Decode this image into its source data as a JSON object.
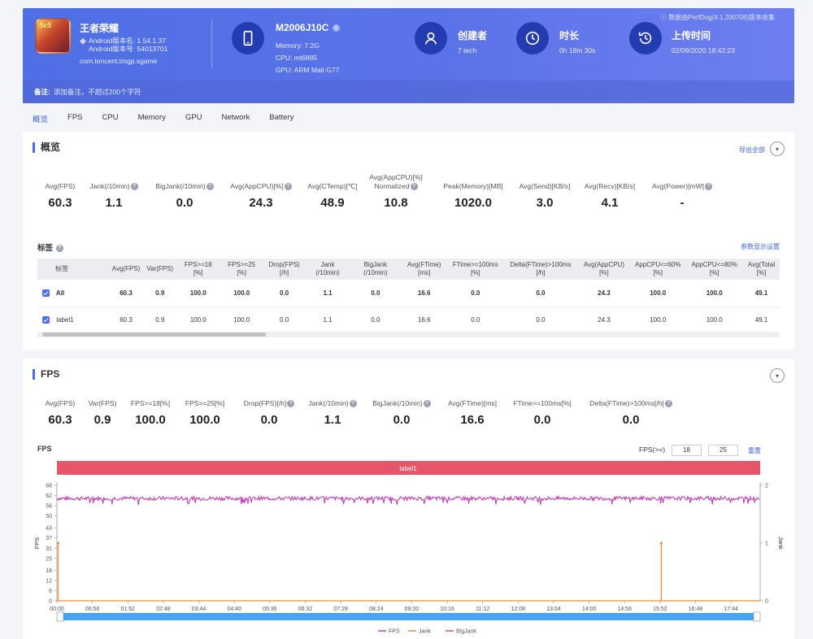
{
  "header": {
    "game_name": "王者荣耀",
    "android_version": "Android版本名: 1.54.1.37",
    "android_code": "Android版本号: 54013701",
    "package": "com.tencent.tmgp.sgame",
    "icon_text": "5v5",
    "device_model": "M2006J10C",
    "memory": "Memory: 7.2G",
    "cpu": "CPU: mt6885",
    "gpu": "GPU: ARM Mali-G77",
    "creator_label": "创建者",
    "creator_value": "7 tech",
    "duration_label": "时长",
    "duration_value": "0h 18m 30s",
    "upload_label": "上传时间",
    "upload_value": "02/09/2020 18:42:23",
    "perfdog": "ⓘ 数据由PerfDog(4.1.200708)版本收集",
    "note_label": "备注:",
    "note_placeholder": "添加备注，不超过200个字符"
  },
  "tabs": [
    "概览",
    "FPS",
    "CPU",
    "Memory",
    "GPU",
    "Network",
    "Battery"
  ],
  "overview": {
    "title": "概览",
    "export": "导出全部",
    "stats": [
      {
        "label": "Avg(FPS)",
        "value": "60.3",
        "q": false
      },
      {
        "label": "Jank(/10min)",
        "value": "1.1",
        "q": true
      },
      {
        "label": "BigJank(/10min)",
        "value": "0.0",
        "q": true
      },
      {
        "label": "Avg(AppCPU)[%]",
        "value": "24.3",
        "q": true
      },
      {
        "label": "Avg(CTemp)[℃]",
        "value": "48.9",
        "q": false
      },
      {
        "label": "Avg(AppCPU)[%] Normalized",
        "value": "10.8",
        "q": true
      },
      {
        "label": "Peak(Memory)[MB]",
        "value": "1020.0",
        "q": false
      },
      {
        "label": "Avg(Send)[KB/s]",
        "value": "3.0",
        "q": false
      },
      {
        "label": "Avg(Recv)[KB/s]",
        "value": "4.1",
        "q": false
      },
      {
        "label": "Avg(Power)[mW]",
        "value": "-",
        "q": true
      }
    ],
    "tag_title": "标签",
    "settings_link": "参数显示设置",
    "table_headers": [
      "标签",
      "Avg(FPS)",
      "Var(FPS)",
      "FPS>=18 [%]",
      "FPS>=25 [%]",
      "Drop(FPS) [/h]",
      "Jank (/10min)",
      "BigJank (/10min)",
      "Avg(FTime) [ms]",
      "FTime>=100ms [%]",
      "Delta(FTime)>100ms [/h]",
      "Avg(AppCPU) [%]",
      "AppCPU<=60% [%]",
      "AppCPU<=80% [%]",
      "Avg(Total [%]"
    ],
    "rows": [
      [
        "All",
        "60.3",
        "0.9",
        "100.0",
        "100.0",
        "0.0",
        "1.1",
        "0.0",
        "16.6",
        "0.0",
        "0.0",
        "24.3",
        "100.0",
        "100.0",
        "49.1"
      ],
      [
        "label1",
        "60.3",
        "0.9",
        "100.0",
        "100.0",
        "0.0",
        "1.1",
        "0.0",
        "16.6",
        "0.0",
        "0.0",
        "24.3",
        "100.0",
        "100.0",
        "49.1"
      ]
    ]
  },
  "fps": {
    "title": "FPS",
    "stats": [
      {
        "label": "Avg(FPS)",
        "value": "60.3",
        "q": false
      },
      {
        "label": "Var(FPS)",
        "value": "0.9",
        "q": false
      },
      {
        "label": "FPS>=18[%]",
        "value": "100.0",
        "q": false
      },
      {
        "label": "FPS>=25[%]",
        "value": "100.0",
        "q": false
      },
      {
        "label": "Drop(FPS)[/h]",
        "value": "0.0",
        "q": true
      },
      {
        "label": "Jank(/10min)",
        "value": "1.1",
        "q": true
      },
      {
        "label": "BigJank(/10min)",
        "value": "0.0",
        "q": true
      },
      {
        "label": "Avg(FTime)[ms]",
        "value": "16.6",
        "q": false
      },
      {
        "label": "FTime>=100ms[%]",
        "value": "0.0",
        "q": false
      },
      {
        "label": "Delta(FTime)>100ms[/h]",
        "value": "0.0",
        "q": true
      }
    ],
    "chart_label": "FPS",
    "threshold_label": "FPS(>=)",
    "threshold1": "18",
    "threshold2": "25",
    "reset": "重置",
    "band_label": "label1"
  },
  "chart_data": {
    "type": "line",
    "ylabel": "FPS",
    "y2label": "Jank",
    "ylim": [
      0,
      68
    ],
    "y2lim": [
      0,
      2
    ],
    "y_ticks": [
      "0",
      "6",
      "12",
      "18",
      "25",
      "31",
      "37",
      "43",
      "50",
      "56",
      "62",
      "68"
    ],
    "y2_ticks": [
      "0",
      "1",
      "2"
    ],
    "x_ticks": [
      "00:00",
      "00:56",
      "01:52",
      "02:48",
      "03:44",
      "04:40",
      "05:36",
      "06:32",
      "07:28",
      "08:24",
      "09:20",
      "10:16",
      "11:12",
      "12:08",
      "13:04",
      "14:00",
      "14:56",
      "15:52",
      "16:48",
      "17:44"
    ],
    "duration_seconds": 1110,
    "series": [
      {
        "name": "FPS",
        "color": "#c23fb5",
        "baseline": 60.3,
        "range": [
          58,
          62
        ]
      },
      {
        "name": "Jank",
        "color": "#f08a2e",
        "spikes": [
          {
            "t": "00:00",
            "value": 1
          },
          {
            "t": "15:52",
            "value": 1
          }
        ]
      },
      {
        "name": "BigJank",
        "color": "#e0524f",
        "values": [
          0
        ]
      }
    ],
    "legend": "bottom"
  },
  "colors": {
    "accent": "#4a6cf0",
    "band": "#e5566a",
    "scrollbar": "#42a5f5"
  }
}
